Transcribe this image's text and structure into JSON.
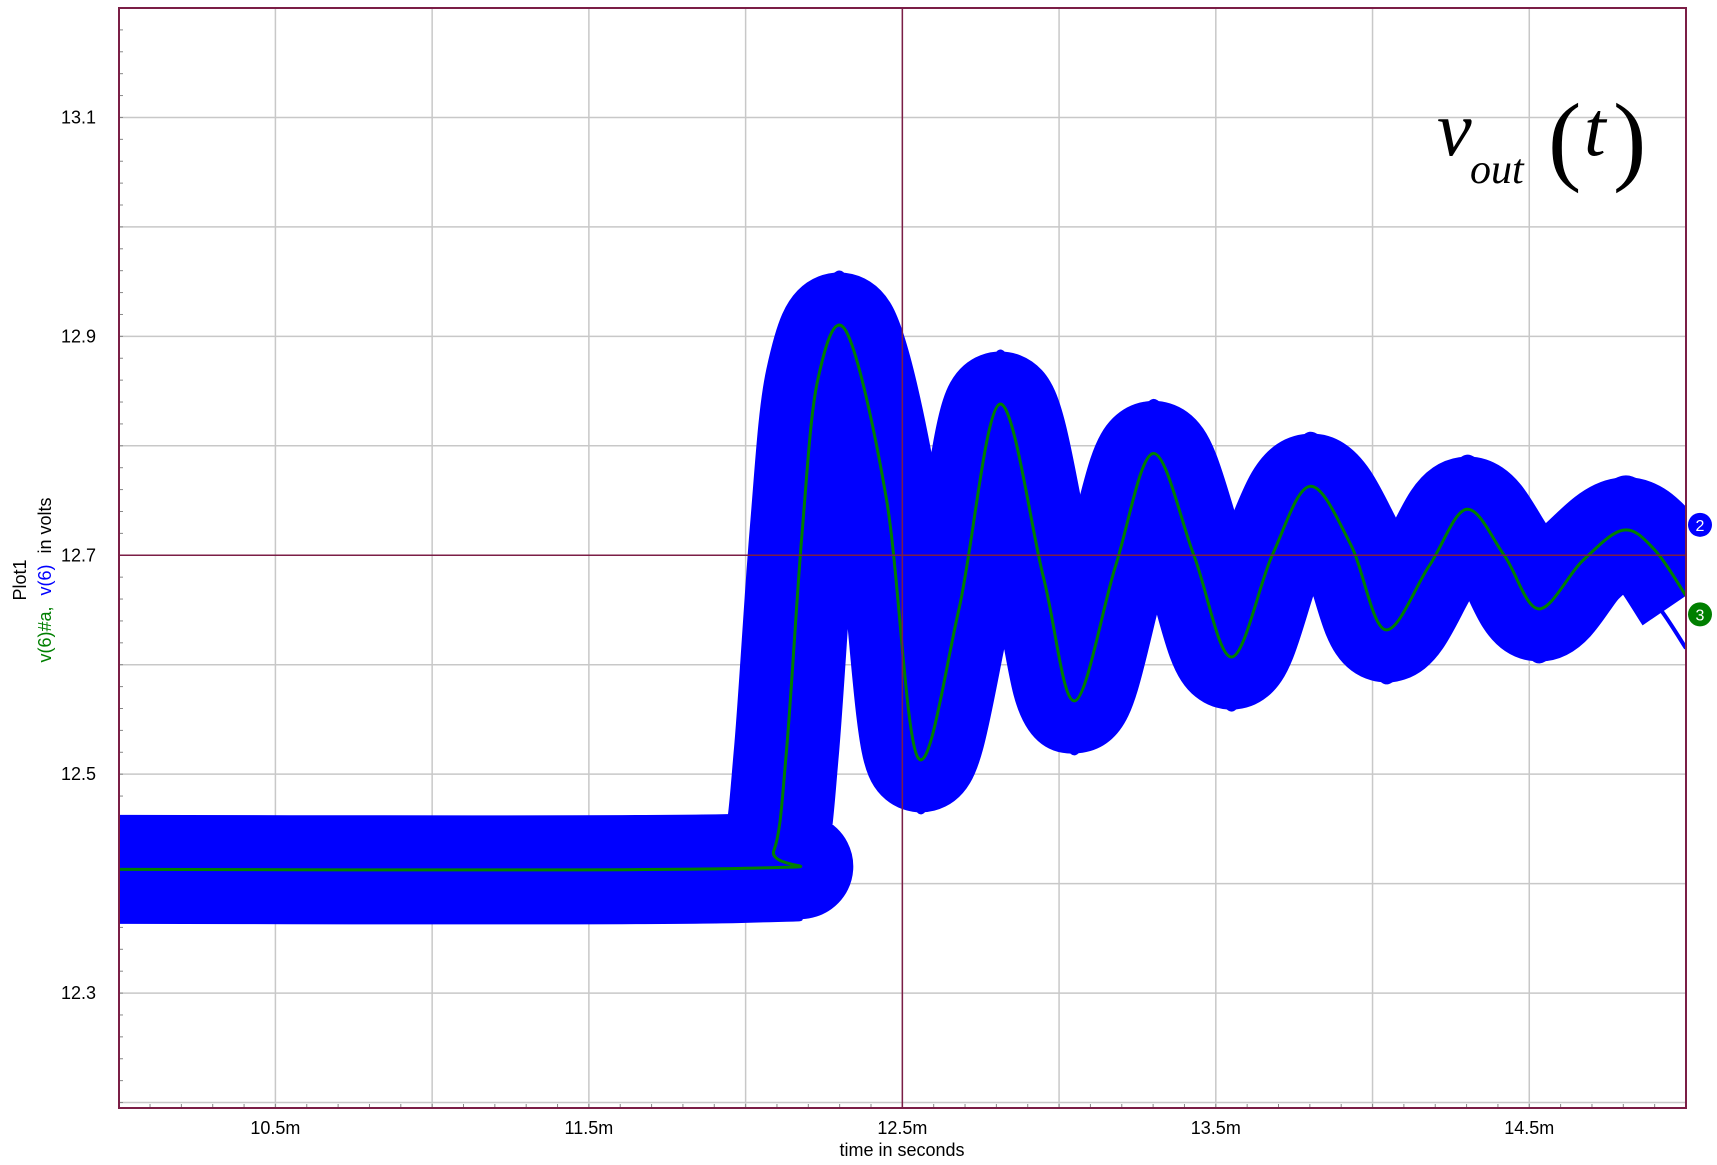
{
  "chart_data": {
    "type": "line",
    "plot_name": "Plot1",
    "ylabel_prefix": "v(6)#a,",
    "ylabel_middle": "v(6)",
    "ylabel_suffix": "in volts",
    "xlabel": "time in seconds",
    "xlim": [
      0.010001,
      0.015
    ],
    "ylim": [
      12.195,
      13.2
    ],
    "xticks": [
      0.0105,
      0.0115,
      0.0125,
      0.0135,
      0.0145
    ],
    "xtick_labels": [
      "10.5m",
      "11.5m",
      "12.5m",
      "13.5m",
      "14.5m"
    ],
    "yticks": [
      12.3,
      12.5,
      12.7,
      12.9,
      13.1
    ],
    "ytick_labels": [
      "12.3",
      "12.5",
      "12.7",
      "12.9",
      "13.1"
    ],
    "cursor": {
      "x": 0.0125,
      "y": 12.7
    },
    "grid": true,
    "annotation": {
      "main": "v",
      "subscript": "out",
      "arg": "t",
      "open_paren": "(",
      "close_paren": ")"
    },
    "series": [
      {
        "id": "v6",
        "color": "#0000ff",
        "marker_label": "2",
        "style": "ripple-band",
        "ripple_half_width": 0.048,
        "x": [
          0.010001,
          0.012,
          0.01209,
          0.01213,
          0.01218,
          0.01223,
          0.01232,
          0.01245,
          0.01255,
          0.01268,
          0.01281,
          0.01295,
          0.01305,
          0.01318,
          0.0133,
          0.01343,
          0.01355,
          0.01368,
          0.0138,
          0.01393,
          0.01404,
          0.01418,
          0.0143,
          0.01442,
          0.01453,
          0.01467,
          0.0148,
          0.0149,
          0.015
        ],
        "y": [
          12.413,
          12.414,
          12.43,
          12.52,
          12.72,
          12.86,
          12.905,
          12.75,
          12.515,
          12.65,
          12.838,
          12.68,
          12.567,
          12.69,
          12.793,
          12.7,
          12.607,
          12.7,
          12.763,
          12.71,
          12.632,
          12.69,
          12.742,
          12.7,
          12.651,
          12.695,
          12.723,
          12.705,
          12.663
        ]
      },
      {
        "id": "v6a",
        "color": "#007f00",
        "marker_label": "3",
        "style": "line",
        "x": [
          0.010001,
          0.012,
          0.01209,
          0.01213,
          0.01218,
          0.01223,
          0.01232,
          0.01245,
          0.01255,
          0.01268,
          0.01281,
          0.01295,
          0.01305,
          0.01318,
          0.0133,
          0.01343,
          0.01355,
          0.01368,
          0.0138,
          0.01393,
          0.01404,
          0.01418,
          0.0143,
          0.01442,
          0.01453,
          0.01467,
          0.0148,
          0.0149,
          0.015
        ],
        "y": [
          12.413,
          12.414,
          12.43,
          12.52,
          12.72,
          12.86,
          12.905,
          12.75,
          12.515,
          12.65,
          12.838,
          12.68,
          12.567,
          12.69,
          12.793,
          12.7,
          12.607,
          12.7,
          12.763,
          12.71,
          12.632,
          12.69,
          12.742,
          12.7,
          12.651,
          12.695,
          12.723,
          12.705,
          12.663
        ]
      }
    ],
    "colors": {
      "frame": "#7b1e46",
      "grid": "#c8c8c8",
      "cursor": "#7b1e46",
      "axis_text": "#000000"
    }
  }
}
